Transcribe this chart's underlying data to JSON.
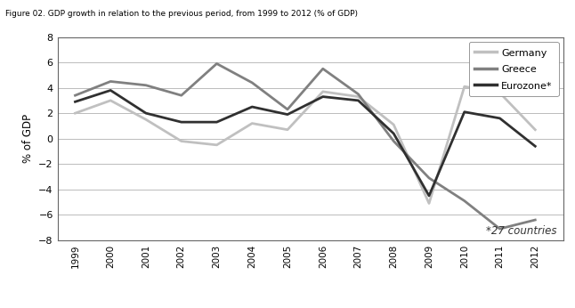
{
  "years": [
    1999,
    2000,
    2001,
    2002,
    2003,
    2004,
    2005,
    2006,
    2007,
    2008,
    2009,
    2010,
    2011,
    2012
  ],
  "germany": [
    2.0,
    3.0,
    1.5,
    -0.2,
    -0.5,
    1.2,
    0.7,
    3.7,
    3.3,
    1.1,
    -5.1,
    4.1,
    3.6,
    0.7
  ],
  "greece": [
    3.4,
    4.5,
    4.2,
    3.4,
    5.9,
    4.4,
    2.3,
    5.5,
    3.5,
    -0.2,
    -3.1,
    -4.9,
    -7.1,
    -6.4
  ],
  "eurozone": [
    2.9,
    3.8,
    2.0,
    1.3,
    1.3,
    2.5,
    1.9,
    3.3,
    3.0,
    0.4,
    -4.5,
    2.1,
    1.6,
    -0.6
  ],
  "germany_color": "#c0c0c0",
  "greece_color": "#808080",
  "eurozone_color": "#303030",
  "ylabel": "% of GDP",
  "ylim": [
    -8,
    8
  ],
  "yticks": [
    -8,
    -6,
    -4,
    -2,
    0,
    2,
    4,
    6,
    8
  ],
  "legend_labels": [
    "Germany",
    "Greece",
    "Eurozone*"
  ],
  "annotation": "*27 countries",
  "background_color": "#ffffff",
  "grid_color": "#bbbbbb",
  "title_bar_color": "#d4a96a",
  "title_text": "Figure 02. GDP growth in relation to the previous period, from 1999 to 2012 (% of GDP)"
}
